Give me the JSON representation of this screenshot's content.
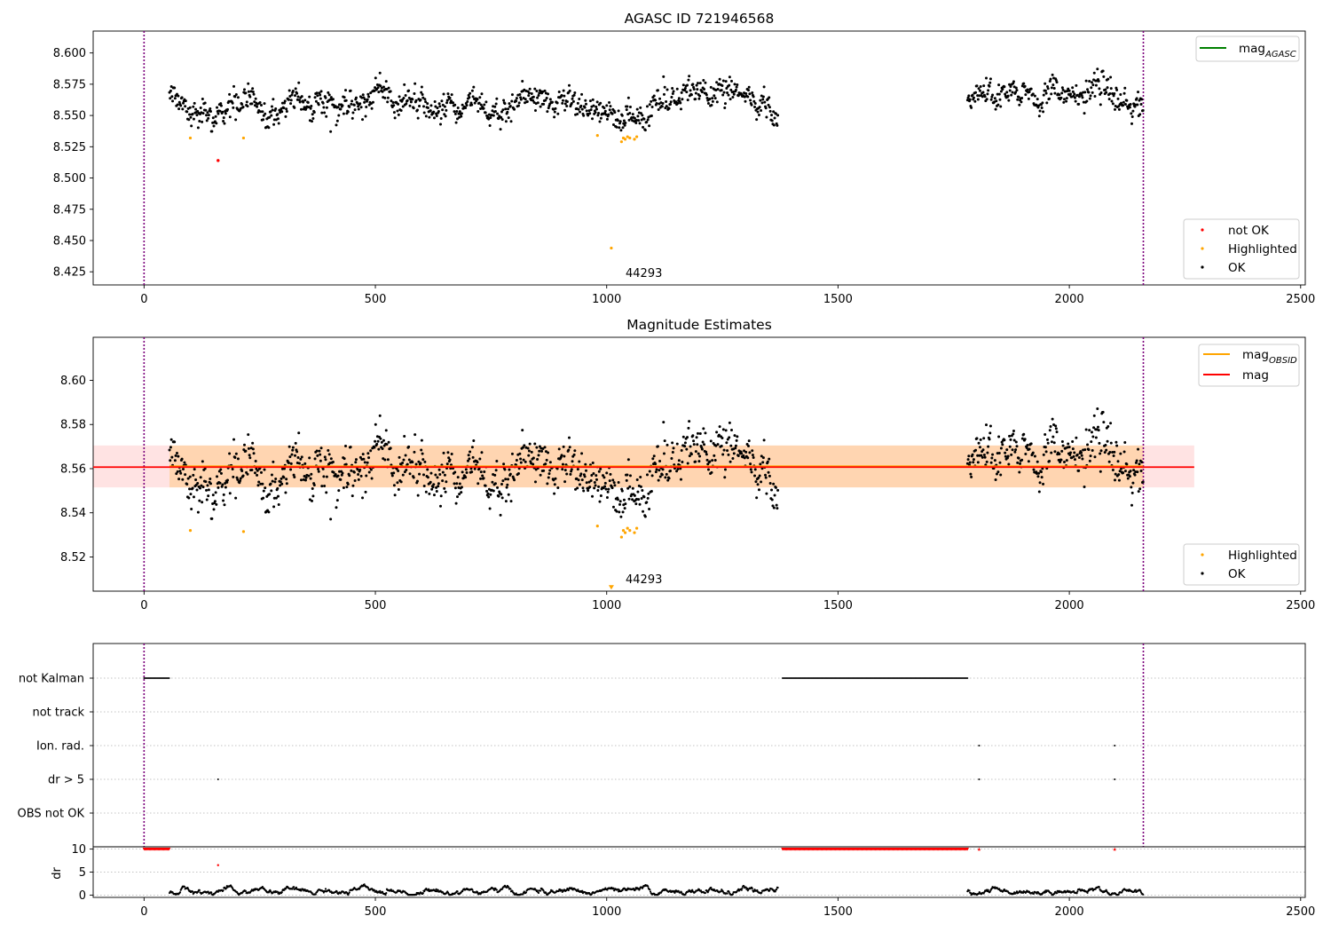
{
  "chart_data": [
    {
      "type": "scatter",
      "title": "AGASC ID 721946568",
      "xlim": [
        -110,
        2510
      ],
      "ylim": [
        8.4145,
        8.6175
      ],
      "xticks": [
        0,
        500,
        1000,
        1500,
        2000,
        2500
      ],
      "yticks": [
        8.425,
        8.45,
        8.475,
        8.5,
        8.525,
        8.55,
        8.575,
        8.6
      ],
      "ytick_labels": [
        "8.425",
        "8.450",
        "8.475",
        "8.500",
        "8.525",
        "8.550",
        "8.575",
        "8.600"
      ],
      "vlines": [
        0,
        2160
      ],
      "obsid_label": {
        "text": "44293",
        "x": 1042,
        "y": 8.424
      },
      "legend_lines": [
        {
          "name": "mag",
          "sub": "AGASC",
          "color": "#008000"
        }
      ],
      "legend_points": [
        {
          "name": "not OK",
          "color": "#ff0000"
        },
        {
          "name": "Highlighted",
          "color": "#ffa500"
        },
        {
          "name": "OK",
          "color": "#000000"
        }
      ],
      "segments": [
        {
          "x0": 55,
          "x1": 1370,
          "base": 8.561,
          "noise": 0.0075
        },
        {
          "x0": 1780,
          "x1": 2160,
          "base": 8.564,
          "noise": 0.0075
        }
      ],
      "dips": [
        {
          "x0": 60,
          "x1": 260,
          "depth": 0.009
        },
        {
          "x0": 1000,
          "x1": 1080,
          "depth": 0.012
        },
        {
          "x0": 1920,
          "x1": 1960,
          "depth": 0.006
        }
      ],
      "highlighted_points": [
        {
          "x": 100,
          "y": 8.532
        },
        {
          "x": 215,
          "y": 8.532
        },
        {
          "x": 980,
          "y": 8.534
        },
        {
          "x": 1010,
          "y": 8.444
        },
        {
          "x": 1032,
          "y": 8.529
        },
        {
          "x": 1036,
          "y": 8.532
        },
        {
          "x": 1040,
          "y": 8.531
        },
        {
          "x": 1045,
          "y": 8.533
        },
        {
          "x": 1050,
          "y": 8.532
        },
        {
          "x": 1060,
          "y": 8.531
        },
        {
          "x": 1065,
          "y": 8.533
        }
      ],
      "notok_points": [
        {
          "x": 160,
          "y": 8.514
        }
      ]
    },
    {
      "type": "scatter",
      "title": "Magnitude Estimates",
      "xlim": [
        -110,
        2510
      ],
      "ylim": [
        8.5045,
        8.6195
      ],
      "xticks": [
        0,
        500,
        1000,
        1500,
        2000,
        2500
      ],
      "yticks": [
        8.52,
        8.54,
        8.56,
        8.58,
        8.6
      ],
      "ytick_labels": [
        "8.52",
        "8.54",
        "8.56",
        "8.58",
        "8.60"
      ],
      "vlines": [
        0,
        2160
      ],
      "obsid_label": {
        "text": "44293",
        "x": 1042,
        "y": 8.5055
      },
      "mag_line": {
        "value": 8.561,
        "band": [
          8.5515,
          8.5705
        ],
        "x": [
          -110,
          2270
        ],
        "color": "#ff0000"
      },
      "obsid_line": {
        "value": 8.561,
        "band": [
          8.5515,
          8.5705
        ],
        "x": [
          55,
          2160
        ],
        "color": "#ffa500"
      },
      "legend_lines": [
        {
          "name": "mag",
          "sub": "OBSID",
          "color": "#ffa500"
        },
        {
          "name": "mag",
          "sub": "",
          "color": "#ff0000"
        }
      ],
      "legend_points": [
        {
          "name": "Highlighted",
          "color": "#ffa500"
        },
        {
          "name": "OK",
          "color": "#000000"
        }
      ],
      "highlighted_points": [
        {
          "x": 100,
          "y": 8.532
        },
        {
          "x": 215,
          "y": 8.5315
        },
        {
          "x": 980,
          "y": 8.534
        },
        {
          "x": 1032,
          "y": 8.529
        },
        {
          "x": 1036,
          "y": 8.532
        },
        {
          "x": 1040,
          "y": 8.531
        },
        {
          "x": 1045,
          "y": 8.533
        },
        {
          "x": 1050,
          "y": 8.532
        },
        {
          "x": 1060,
          "y": 8.531
        },
        {
          "x": 1065,
          "y": 8.533
        }
      ],
      "offscale_marker": {
        "x": 1010,
        "y": 8.506,
        "color": "#ffa500"
      }
    },
    {
      "type": "scatter",
      "title": "",
      "xlim": [
        -110,
        2510
      ],
      "ylim": [
        -0.5,
        5.5
      ],
      "categories": [
        "not Kalman",
        "not track",
        "Ion. rad.",
        "dr > 5",
        "OBS not OK"
      ],
      "category_levels": [
        5,
        4,
        3,
        2,
        1
      ],
      "vlines": [
        0,
        2160
      ],
      "flags": [
        {
          "category": "not Kalman",
          "ranges": [
            [
              0,
              55
            ],
            [
              1380,
              1780
            ]
          ]
        },
        {
          "category": "Ion. rad.",
          "points": [
            1805,
            2098
          ]
        },
        {
          "category": "dr > 5",
          "points": [
            160,
            1805,
            2098
          ]
        }
      ]
    },
    {
      "type": "scatter",
      "title": "",
      "ylabel": "dr",
      "xlim": [
        -110,
        2510
      ],
      "ylim": [
        -0.5,
        10.5
      ],
      "xticks": [
        0,
        500,
        1000,
        1500,
        2000,
        2500
      ],
      "yticks": [
        0,
        5,
        10
      ],
      "clipped_value": 10,
      "clipped_ranges": [
        [
          0,
          55
        ],
        [
          1380,
          1780
        ]
      ],
      "clipped_points": [
        1805,
        2098
      ],
      "outlier_points": [
        {
          "x": 160,
          "y": 6.5
        }
      ],
      "segments": [
        {
          "x0": 55,
          "x1": 1370,
          "base": 0.8
        },
        {
          "x0": 1780,
          "x1": 2160,
          "base": 0.9
        }
      ]
    }
  ]
}
